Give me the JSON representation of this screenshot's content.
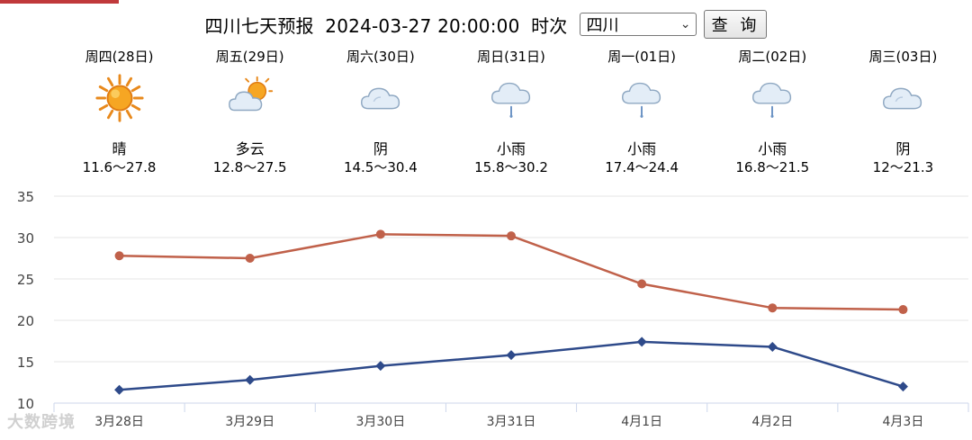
{
  "header": {
    "region": "四川",
    "title_text": "七天预报",
    "datetime": "2024-03-27 20:00:00",
    "batch_label": "时次",
    "selected_province": "四川",
    "query_label": "查 询"
  },
  "days": [
    {
      "label": "周四(28日)",
      "icon": "sun-icon",
      "weather": "晴",
      "range": "11.6～27.8"
    },
    {
      "label": "周五(29日)",
      "icon": "partly-cloudy-icon",
      "weather": "多云",
      "range": "12.8～27.5"
    },
    {
      "label": "周六(30日)",
      "icon": "cloud-icon",
      "weather": "阴",
      "range": "14.5～30.4"
    },
    {
      "label": "周日(31日)",
      "icon": "rain-icon",
      "weather": "小雨",
      "range": "15.8～30.2"
    },
    {
      "label": "周一(01日)",
      "icon": "rain-icon",
      "weather": "小雨",
      "range": "17.4～24.4"
    },
    {
      "label": "周二(02日)",
      "icon": "rain-icon",
      "weather": "小雨",
      "range": "16.8～21.5"
    },
    {
      "label": "周三(03日)",
      "icon": "cloud-icon",
      "weather": "阴",
      "range": "12～21.3"
    }
  ],
  "chart_data": {
    "type": "line",
    "categories": [
      "3月28日",
      "3月29日",
      "3月30日",
      "3月31日",
      "4月1日",
      "4月2日",
      "4月3日"
    ],
    "series": [
      {
        "values": [
          27.8,
          27.5,
          30.4,
          30.2,
          24.4,
          21.5,
          21.3
        ],
        "color": "#c0614a",
        "marker": "circle"
      },
      {
        "values": [
          11.6,
          12.8,
          14.5,
          15.8,
          17.4,
          16.8,
          12.0
        ],
        "color": "#2e4a8a",
        "marker": "diamond"
      }
    ],
    "yticks": [
      10,
      15,
      20,
      25,
      30,
      35
    ],
    "ylim": [
      10,
      35
    ],
    "grid": true
  },
  "watermark": "大数跨境",
  "colors": {
    "accent": "#c0393b",
    "grid": "#e6e6e6",
    "axis": "#ccd6eb"
  }
}
